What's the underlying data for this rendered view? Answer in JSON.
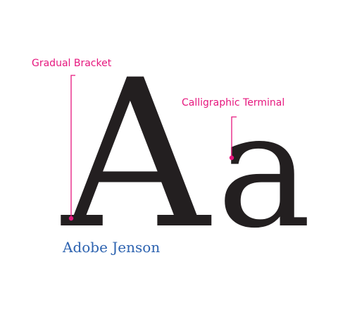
{
  "specimen": {
    "letters": {
      "uppercase": "A",
      "lowercase": "a"
    },
    "font_name": "Adobe Jenson",
    "glyph_color": "#231f20"
  },
  "annotations": {
    "bracket_label": "Gradual Bracket",
    "terminal_label": "Calligraphic Terminal",
    "color": "#e6177e"
  },
  "font_name_color": "#2d63b0"
}
